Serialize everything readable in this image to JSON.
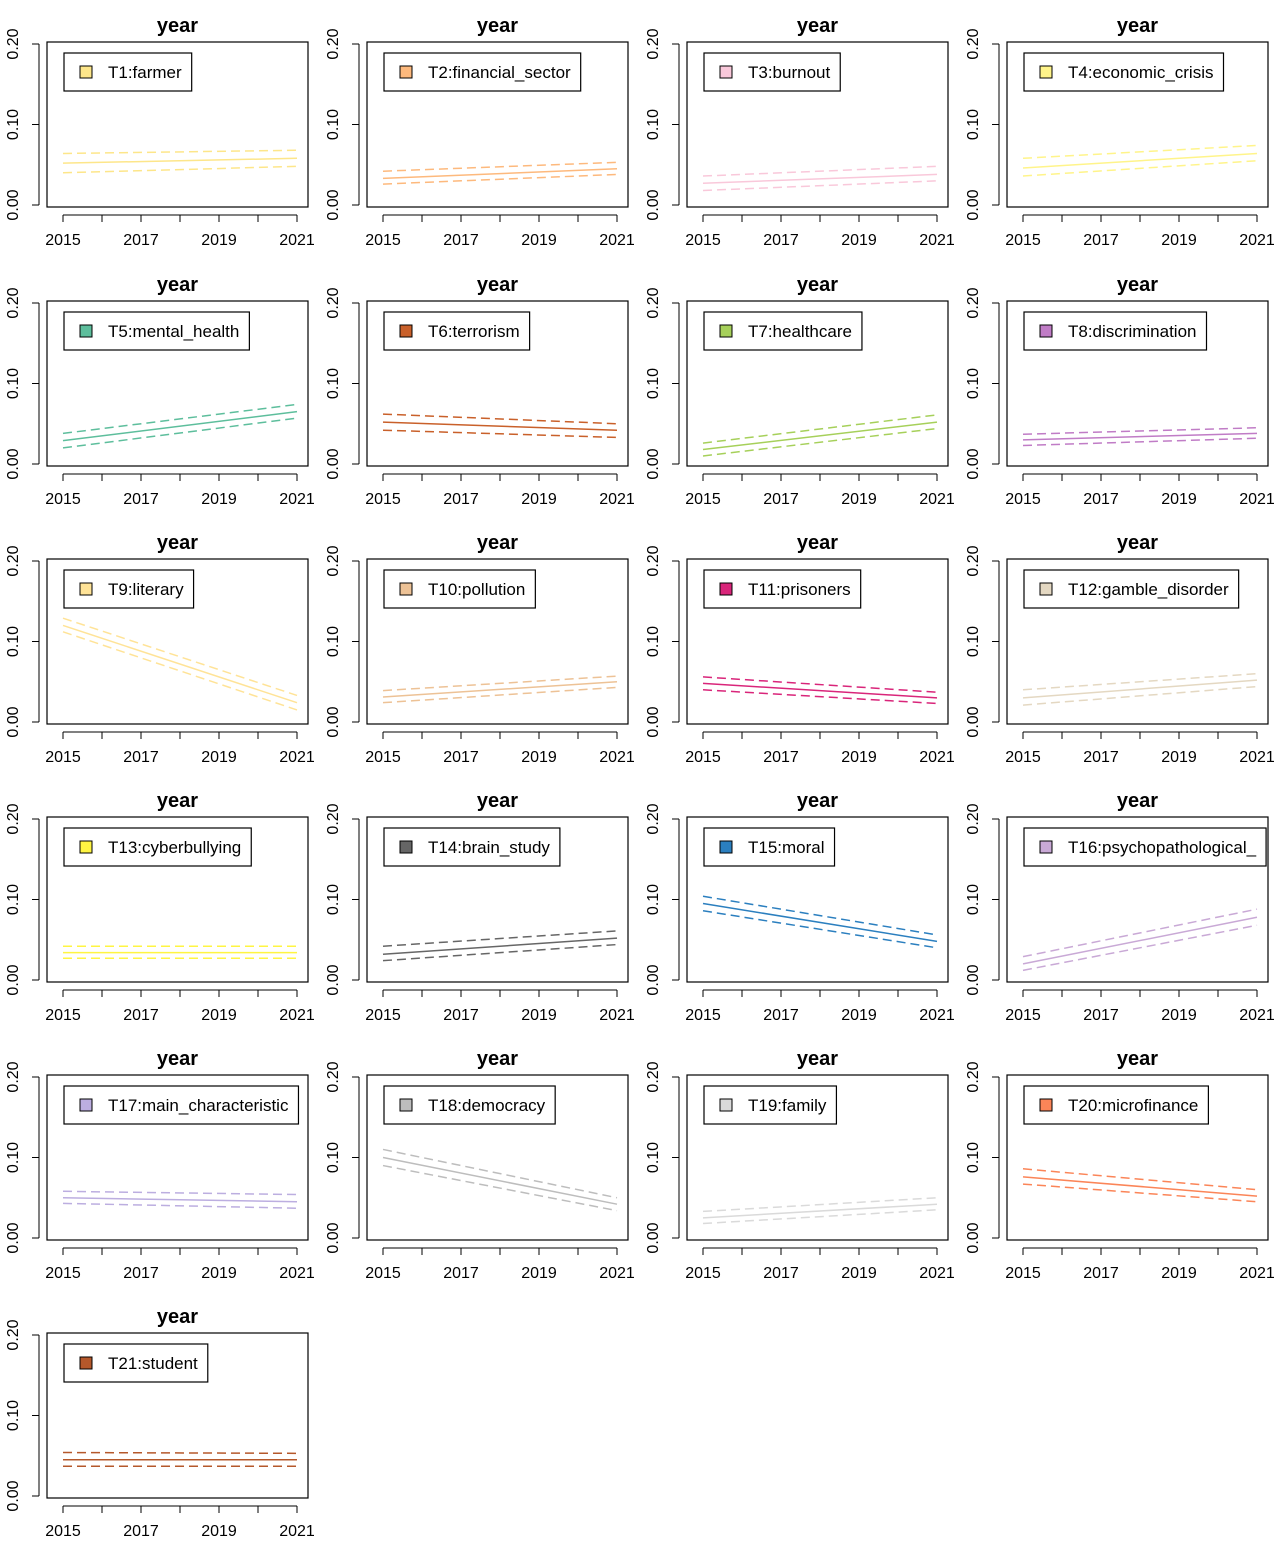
{
  "chart_data": {
    "type": "line",
    "layout": "small-multiples",
    "x_ticks": [
      2015,
      2017,
      2019,
      2021
    ],
    "y_ticks": [
      0.0,
      0.1,
      0.2
    ],
    "y_tick_labels": [
      "0.00",
      "0.10",
      "0.20"
    ],
    "x_tick_labels": [
      "2015",
      "2017",
      "2019",
      "2021"
    ],
    "xlim": [
      2015,
      2021
    ],
    "ylim": [
      0.0,
      0.2
    ],
    "legend_position": "top-left",
    "panels": [
      {
        "title": "year",
        "label": "T1:farmer",
        "color": "#FDE68A",
        "x": [
          2015,
          2021
        ],
        "y": [
          0.052,
          0.058
        ],
        "ci_lower": [
          0.04,
          0.048
        ],
        "ci_upper": [
          0.064,
          0.068
        ]
      },
      {
        "title": "year",
        "label": "T2:financial_sector",
        "color": "#FDB97D",
        "x": [
          2015,
          2021
        ],
        "y": [
          0.033,
          0.045
        ],
        "ci_lower": [
          0.026,
          0.038
        ],
        "ci_upper": [
          0.042,
          0.053
        ]
      },
      {
        "title": "year",
        "label": "T3:burnout",
        "color": "#F9C8DA",
        "x": [
          2015,
          2021
        ],
        "y": [
          0.027,
          0.038
        ],
        "ci_lower": [
          0.018,
          0.03
        ],
        "ci_upper": [
          0.036,
          0.048
        ]
      },
      {
        "title": "year",
        "label": "T4:economic_crisis",
        "color": "#FFF48A",
        "x": [
          2015,
          2021
        ],
        "y": [
          0.046,
          0.064
        ],
        "ci_lower": [
          0.036,
          0.055
        ],
        "ci_upper": [
          0.058,
          0.074
        ]
      },
      {
        "title": "year",
        "label": "T5:mental_health",
        "color": "#5DBE9C",
        "x": [
          2015,
          2021
        ],
        "y": [
          0.029,
          0.065
        ],
        "ci_lower": [
          0.02,
          0.057
        ],
        "ci_upper": [
          0.038,
          0.074
        ]
      },
      {
        "title": "year",
        "label": "T6:terrorism",
        "color": "#C9602A",
        "x": [
          2015,
          2021
        ],
        "y": [
          0.052,
          0.042
        ],
        "ci_lower": [
          0.042,
          0.033
        ],
        "ci_upper": [
          0.062,
          0.05
        ]
      },
      {
        "title": "year",
        "label": "T7:healthcare",
        "color": "#A6D05A",
        "x": [
          2015,
          2021
        ],
        "y": [
          0.018,
          0.052
        ],
        "ci_lower": [
          0.01,
          0.044
        ],
        "ci_upper": [
          0.026,
          0.061
        ]
      },
      {
        "title": "year",
        "label": "T8:discrimination",
        "color": "#C07CC6",
        "x": [
          2015,
          2021
        ],
        "y": [
          0.03,
          0.038
        ],
        "ci_lower": [
          0.023,
          0.032
        ],
        "ci_upper": [
          0.037,
          0.045
        ]
      },
      {
        "title": "year",
        "label": "T9:literary",
        "color": "#FFE397",
        "x": [
          2015,
          2021
        ],
        "y": [
          0.12,
          0.024
        ],
        "ci_lower": [
          0.112,
          0.015
        ],
        "ci_upper": [
          0.129,
          0.033
        ]
      },
      {
        "title": "year",
        "label": "T10:pollution",
        "color": "#EDC296",
        "x": [
          2015,
          2021
        ],
        "y": [
          0.031,
          0.05
        ],
        "ci_lower": [
          0.024,
          0.043
        ],
        "ci_upper": [
          0.039,
          0.057
        ]
      },
      {
        "title": "year",
        "label": "T11:prisoners",
        "color": "#D9257A",
        "x": [
          2015,
          2021
        ],
        "y": [
          0.048,
          0.03
        ],
        "ci_lower": [
          0.04,
          0.023
        ],
        "ci_upper": [
          0.056,
          0.037
        ]
      },
      {
        "title": "year",
        "label": "T12:gamble_disorder",
        "color": "#E4D8C2",
        "x": [
          2015,
          2021
        ],
        "y": [
          0.03,
          0.052
        ],
        "ci_lower": [
          0.021,
          0.044
        ],
        "ci_upper": [
          0.04,
          0.06
        ]
      },
      {
        "title": "year",
        "label": "T13:cyberbullying",
        "color": "#FFF542",
        "x": [
          2015,
          2021
        ],
        "y": [
          0.034,
          0.034
        ],
        "ci_lower": [
          0.027,
          0.027
        ],
        "ci_upper": [
          0.042,
          0.042
        ]
      },
      {
        "title": "year",
        "label": "T14:brain_study",
        "color": "#666666",
        "x": [
          2015,
          2021
        ],
        "y": [
          0.032,
          0.052
        ],
        "ci_lower": [
          0.024,
          0.044
        ],
        "ci_upper": [
          0.042,
          0.061
        ]
      },
      {
        "title": "year",
        "label": "T15:moral",
        "color": "#2B7FBF",
        "x": [
          2015,
          2021
        ],
        "y": [
          0.095,
          0.048
        ],
        "ci_lower": [
          0.086,
          0.04
        ],
        "ci_upper": [
          0.104,
          0.056
        ]
      },
      {
        "title": "year",
        "label": "T16:psychopathological_",
        "color": "#C9A9D6",
        "x": [
          2015,
          2021
        ],
        "y": [
          0.02,
          0.078
        ],
        "ci_lower": [
          0.012,
          0.068
        ],
        "ci_upper": [
          0.029,
          0.088
        ]
      },
      {
        "title": "year",
        "label": "T17:main_characteristic",
        "color": "#BCAEE0",
        "x": [
          2015,
          2021
        ],
        "y": [
          0.05,
          0.045
        ],
        "ci_lower": [
          0.043,
          0.037
        ],
        "ci_upper": [
          0.058,
          0.054
        ]
      },
      {
        "title": "year",
        "label": "T18:democracy",
        "color": "#BDBDBD",
        "x": [
          2015,
          2021
        ],
        "y": [
          0.1,
          0.042
        ],
        "ci_lower": [
          0.09,
          0.034
        ],
        "ci_upper": [
          0.11,
          0.05
        ]
      },
      {
        "title": "year",
        "label": "T19:family",
        "color": "#DADADA",
        "x": [
          2015,
          2021
        ],
        "y": [
          0.025,
          0.042
        ],
        "ci_lower": [
          0.018,
          0.035
        ],
        "ci_upper": [
          0.033,
          0.05
        ]
      },
      {
        "title": "year",
        "label": "T20:microfinance",
        "color": "#FB8558",
        "x": [
          2015,
          2021
        ],
        "y": [
          0.076,
          0.052
        ],
        "ci_lower": [
          0.067,
          0.045
        ],
        "ci_upper": [
          0.086,
          0.06
        ]
      },
      {
        "title": "year",
        "label": "T21:student",
        "color": "#B5582B",
        "x": [
          2015,
          2021
        ],
        "y": [
          0.045,
          0.045
        ],
        "ci_lower": [
          0.037,
          0.037
        ],
        "ci_upper": [
          0.054,
          0.053
        ]
      }
    ]
  }
}
